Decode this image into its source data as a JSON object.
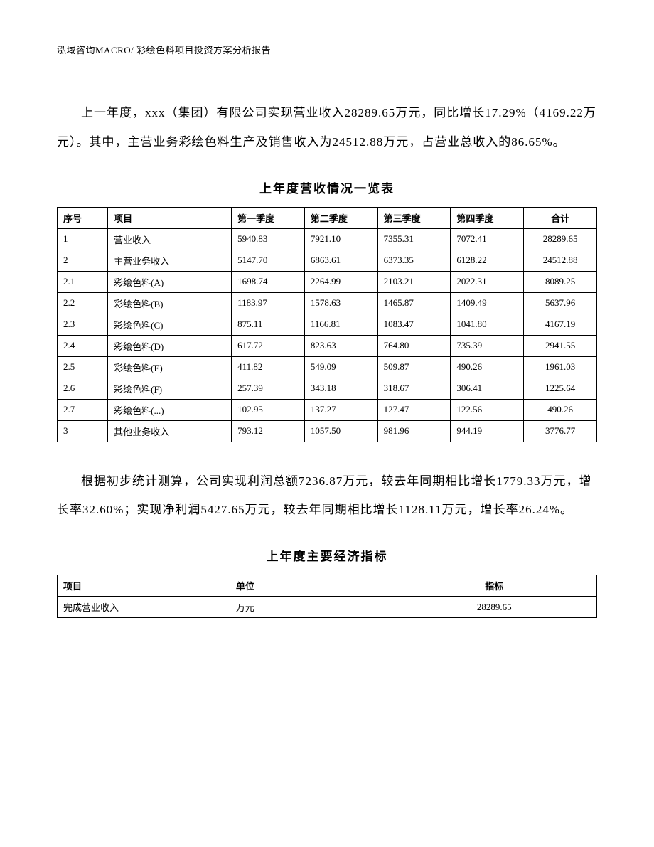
{
  "header": "泓域咨询MACRO/    彩绘色料项目投资方案分析报告",
  "paragraph1": "上一年度，xxx（集团）有限公司实现营业收入28289.65万元，同比增长17.29%（4169.22万元）。其中，主营业务彩绘色料生产及销售收入为24512.88万元，占营业总收入的86.65%。",
  "table1": {
    "title": "上年度营收情况一览表",
    "columns": [
      "序号",
      "项目",
      "第一季度",
      "第二季度",
      "第三季度",
      "第四季度",
      "合计"
    ],
    "rows": [
      [
        "1",
        "营业收入",
        "5940.83",
        "7921.10",
        "7355.31",
        "7072.41",
        "28289.65"
      ],
      [
        "2",
        "主营业务收入",
        "5147.70",
        "6863.61",
        "6373.35",
        "6128.22",
        "24512.88"
      ],
      [
        "2.1",
        "彩绘色料(A)",
        "1698.74",
        "2264.99",
        "2103.21",
        "2022.31",
        "8089.25"
      ],
      [
        "2.2",
        "彩绘色料(B)",
        "1183.97",
        "1578.63",
        "1465.87",
        "1409.49",
        "5637.96"
      ],
      [
        "2.3",
        "彩绘色料(C)",
        "875.11",
        "1166.81",
        "1083.47",
        "1041.80",
        "4167.19"
      ],
      [
        "2.4",
        "彩绘色料(D)",
        "617.72",
        "823.63",
        "764.80",
        "735.39",
        "2941.55"
      ],
      [
        "2.5",
        "彩绘色料(E)",
        "411.82",
        "549.09",
        "509.87",
        "490.26",
        "1961.03"
      ],
      [
        "2.6",
        "彩绘色料(F)",
        "257.39",
        "343.18",
        "318.67",
        "306.41",
        "1225.64"
      ],
      [
        "2.7",
        "彩绘色料(...)",
        "102.95",
        "137.27",
        "127.47",
        "122.56",
        "490.26"
      ],
      [
        "3",
        "其他业务收入",
        "793.12",
        "1057.50",
        "981.96",
        "944.19",
        "3776.77"
      ]
    ]
  },
  "paragraph2": "根据初步统计测算，公司实现利润总额7236.87万元，较去年同期相比增长1779.33万元，增长率32.60%；实现净利润5427.65万元，较去年同期相比增长1128.11万元，增长率26.24%。",
  "table2": {
    "title": "上年度主要经济指标",
    "columns": [
      "项目",
      "单位",
      "指标"
    ],
    "rows": [
      [
        "完成营业收入",
        "万元",
        "28289.65"
      ]
    ]
  }
}
